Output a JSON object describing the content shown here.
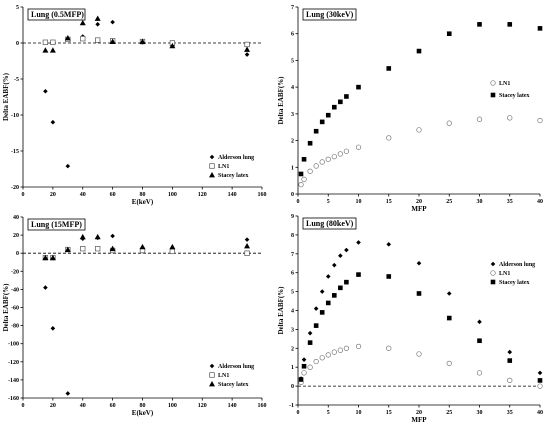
{
  "chart_data": [
    {
      "type": "scatter",
      "title": "Lung (0.5MFP)",
      "xlabel": "E(keV)",
      "ylabel": "Delta EABF(%)",
      "xlim": [
        0,
        160
      ],
      "ylim": [
        -20,
        5
      ],
      "xticks": [
        0,
        20,
        40,
        60,
        80,
        100,
        120,
        140,
        160
      ],
      "yticks": [
        -20,
        -15,
        -10,
        -5,
        0,
        5
      ],
      "zero_line": true,
      "legend_position": "bottom-right",
      "series": [
        {
          "name": "Alderson lung",
          "marker": "diamond",
          "points": [
            [
              15,
              -6.7
            ],
            [
              20,
              -11
            ],
            [
              30,
              -17.1
            ],
            [
              40,
              0.9
            ],
            [
              50,
              2.6
            ],
            [
              60,
              2.9
            ],
            [
              80,
              0.1
            ],
            [
              100,
              -0.4
            ],
            [
              150,
              -1.6
            ]
          ]
        },
        {
          "name": "LN1",
          "marker": "open-square",
          "points": [
            [
              15,
              0.1
            ],
            [
              20,
              0.1
            ],
            [
              30,
              0.5
            ],
            [
              40,
              0.6
            ],
            [
              50,
              0.4
            ],
            [
              60,
              0.3
            ],
            [
              80,
              0.2
            ],
            [
              100,
              0.0
            ],
            [
              150,
              -0.2
            ]
          ]
        },
        {
          "name": "Stacey latex",
          "marker": "triangle",
          "points": [
            [
              15,
              -1.0
            ],
            [
              20,
              -1.0
            ],
            [
              30,
              0.7
            ],
            [
              40,
              2.8
            ],
            [
              50,
              3.4
            ],
            [
              60,
              0.2
            ],
            [
              80,
              0.2
            ],
            [
              100,
              -0.4
            ],
            [
              150,
              -0.9
            ]
          ]
        }
      ]
    },
    {
      "type": "scatter",
      "title": "Lung (30keV)",
      "xlabel": "MFP",
      "ylabel": "Delta EABF(%)",
      "xlim": [
        0,
        40
      ],
      "ylim": [
        0,
        7
      ],
      "xticks": [
        0,
        5,
        10,
        15,
        20,
        25,
        30,
        35,
        40
      ],
      "yticks": [
        0,
        1,
        2,
        3,
        4,
        5,
        6,
        7
      ],
      "zero_line": false,
      "legend_position": "right",
      "series": [
        {
          "name": "LN1",
          "marker": "open-circle",
          "points": [
            [
              0.5,
              0.35
            ],
            [
              1,
              0.55
            ],
            [
              2,
              0.85
            ],
            [
              3,
              1.05
            ],
            [
              4,
              1.2
            ],
            [
              5,
              1.3
            ],
            [
              6,
              1.4
            ],
            [
              7,
              1.5
            ],
            [
              8,
              1.6
            ],
            [
              10,
              1.75
            ],
            [
              15,
              2.1
            ],
            [
              20,
              2.4
            ],
            [
              25,
              2.65
            ],
            [
              30,
              2.8
            ],
            [
              35,
              2.85
            ],
            [
              40,
              2.75
            ]
          ]
        },
        {
          "name": "Stacey latex",
          "marker": "square",
          "points": [
            [
              0.5,
              0.75
            ],
            [
              1,
              1.3
            ],
            [
              2,
              1.9
            ],
            [
              3,
              2.35
            ],
            [
              4,
              2.7
            ],
            [
              5,
              2.95
            ],
            [
              6,
              3.25
            ],
            [
              7,
              3.45
            ],
            [
              8,
              3.65
            ],
            [
              10,
              4.0
            ],
            [
              15,
              4.7
            ],
            [
              20,
              5.35
            ],
            [
              25,
              6.0
            ],
            [
              30,
              6.35
            ],
            [
              35,
              6.35
            ],
            [
              40,
              6.2
            ]
          ]
        }
      ]
    },
    {
      "type": "scatter",
      "title": "Lung (15MFP)",
      "xlabel": "E(keV)",
      "ylabel": "Delta EABF(%)",
      "xlim": [
        0,
        160
      ],
      "ylim": [
        -160,
        40
      ],
      "xticks": [
        0,
        20,
        40,
        60,
        80,
        100,
        120,
        140,
        160
      ],
      "yticks": [
        -160,
        -140,
        -120,
        -100,
        -80,
        -60,
        -40,
        -20,
        0,
        20,
        40
      ],
      "zero_line": true,
      "legend_position": "bottom-right",
      "series": [
        {
          "name": "Alderson lung",
          "marker": "diamond",
          "points": [
            [
              15,
              -38
            ],
            [
              20,
              -83
            ],
            [
              30,
              -155
            ],
            [
              40,
              16
            ],
            [
              50,
              17
            ],
            [
              60,
              19
            ],
            [
              80,
              5
            ],
            [
              100,
              3
            ],
            [
              150,
              15
            ]
          ]
        },
        {
          "name": "LN1",
          "marker": "open-square",
          "points": [
            [
              15,
              -5
            ],
            [
              20,
              -5
            ],
            [
              30,
              4
            ],
            [
              40,
              5
            ],
            [
              50,
              5
            ],
            [
              60,
              3
            ],
            [
              80,
              3
            ],
            [
              100,
              2
            ],
            [
              150,
              0
            ]
          ]
        },
        {
          "name": "Stacey latex",
          "marker": "triangle",
          "points": [
            [
              15,
              -5
            ],
            [
              20,
              -5
            ],
            [
              30,
              4
            ],
            [
              40,
              18
            ],
            [
              50,
              18
            ],
            [
              60,
              5
            ],
            [
              80,
              7
            ],
            [
              100,
              7
            ],
            [
              150,
              8
            ]
          ]
        }
      ]
    },
    {
      "type": "scatter",
      "title": "Lung (80keV)",
      "xlabel": "MFP",
      "ylabel": "Delta EABF(%)",
      "xlim": [
        0,
        40
      ],
      "ylim": [
        -1,
        9
      ],
      "xticks": [
        0,
        5,
        10,
        15,
        20,
        25,
        30,
        35,
        40
      ],
      "yticks": [
        -1,
        0,
        1,
        2,
        3,
        4,
        5,
        6,
        7,
        8,
        9
      ],
      "zero_line": true,
      "legend_position": "right",
      "series": [
        {
          "name": "Alderson lung",
          "marker": "diamond",
          "points": [
            [
              0.5,
              0.4
            ],
            [
              1,
              1.4
            ],
            [
              2,
              2.8
            ],
            [
              3,
              4.1
            ],
            [
              4,
              5.0
            ],
            [
              5,
              5.8
            ],
            [
              6,
              6.4
            ],
            [
              7,
              6.9
            ],
            [
              8,
              7.2
            ],
            [
              10,
              7.6
            ],
            [
              15,
              7.5
            ],
            [
              20,
              6.5
            ],
            [
              25,
              4.9
            ],
            [
              30,
              3.4
            ],
            [
              35,
              1.8
            ],
            [
              40,
              0.7
            ]
          ]
        },
        {
          "name": "LN1",
          "marker": "open-circle",
          "points": [
            [
              0.5,
              0.2
            ],
            [
              1,
              0.7
            ],
            [
              2,
              1.0
            ],
            [
              3,
              1.3
            ],
            [
              4,
              1.5
            ],
            [
              5,
              1.65
            ],
            [
              6,
              1.8
            ],
            [
              7,
              1.9
            ],
            [
              8,
              2.0
            ],
            [
              10,
              2.1
            ],
            [
              15,
              2.0
            ],
            [
              20,
              1.7
            ],
            [
              25,
              1.2
            ],
            [
              30,
              0.7
            ],
            [
              35,
              0.3
            ],
            [
              40,
              0.0
            ]
          ]
        },
        {
          "name": "Stacey latex",
          "marker": "square",
          "points": [
            [
              0.5,
              0.35
            ],
            [
              1,
              1.05
            ],
            [
              2,
              2.3
            ],
            [
              3,
              3.2
            ],
            [
              4,
              3.9
            ],
            [
              5,
              4.4
            ],
            [
              6,
              4.8
            ],
            [
              7,
              5.2
            ],
            [
              8,
              5.5
            ],
            [
              10,
              5.9
            ],
            [
              15,
              5.8
            ],
            [
              20,
              4.9
            ],
            [
              25,
              3.6
            ],
            [
              30,
              2.4
            ],
            [
              35,
              1.35
            ],
            [
              40,
              0.3
            ]
          ]
        }
      ]
    }
  ]
}
